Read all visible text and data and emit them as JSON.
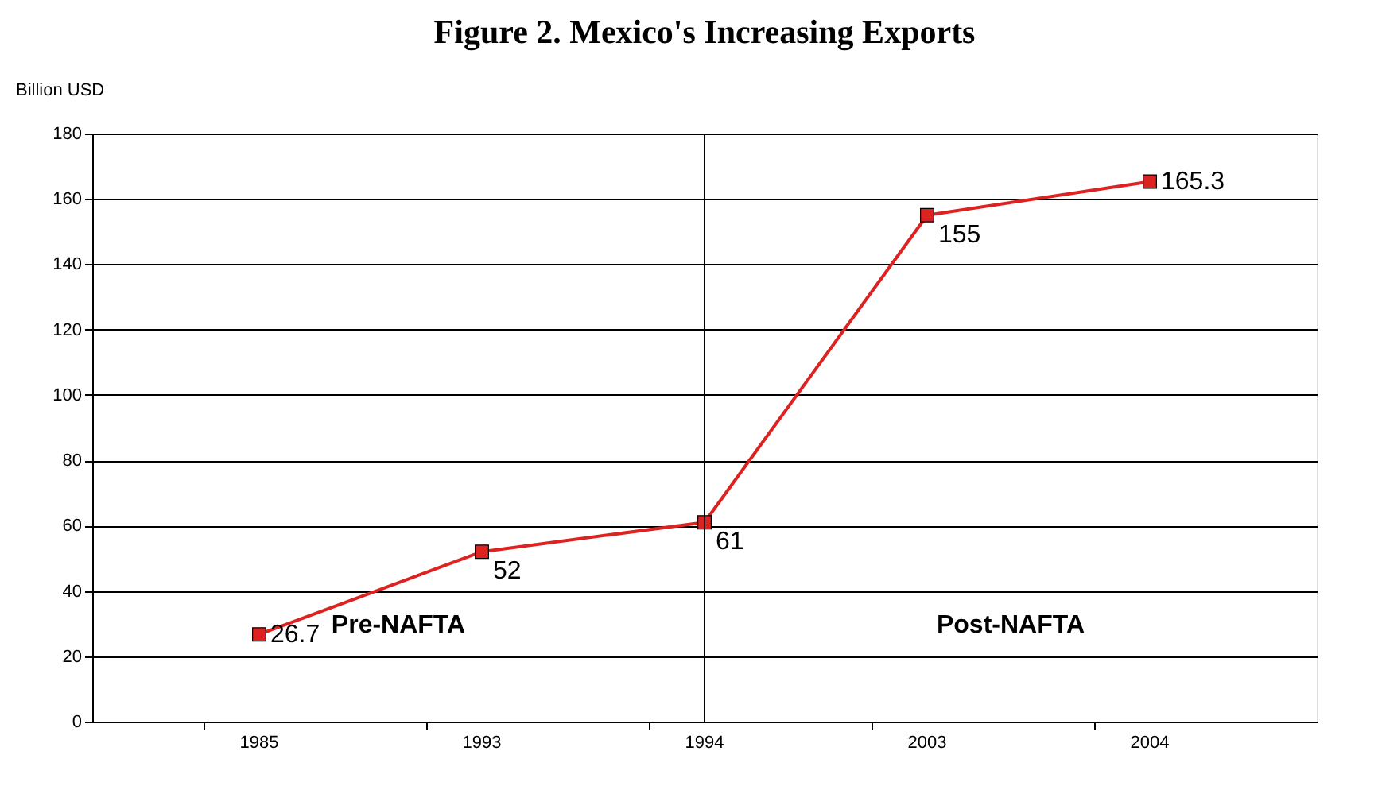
{
  "chart_data": {
    "type": "line",
    "title": "Figure 2. Mexico's Increasing Exports",
    "ylabel": "Billion USD",
    "categories": [
      "1985",
      "1993",
      "1994",
      "2003",
      "2004"
    ],
    "series": [
      {
        "color": "#dd2222",
        "values": [
          26.7,
          52,
          61,
          155,
          165.3
        ]
      }
    ],
    "ylim": [
      0,
      180
    ],
    "yticks": [
      0,
      20,
      40,
      60,
      80,
      100,
      120,
      140,
      160,
      180
    ],
    "grid": "y",
    "marker": "square",
    "line_style": "solid",
    "data_labels": true,
    "ref_lines": [
      {
        "axis": "x",
        "value": "1994",
        "color": "#000000",
        "line_style": "solid"
      }
    ],
    "annotations": [
      "Pre-NAFTA",
      "Post-NAFTA"
    ]
  }
}
